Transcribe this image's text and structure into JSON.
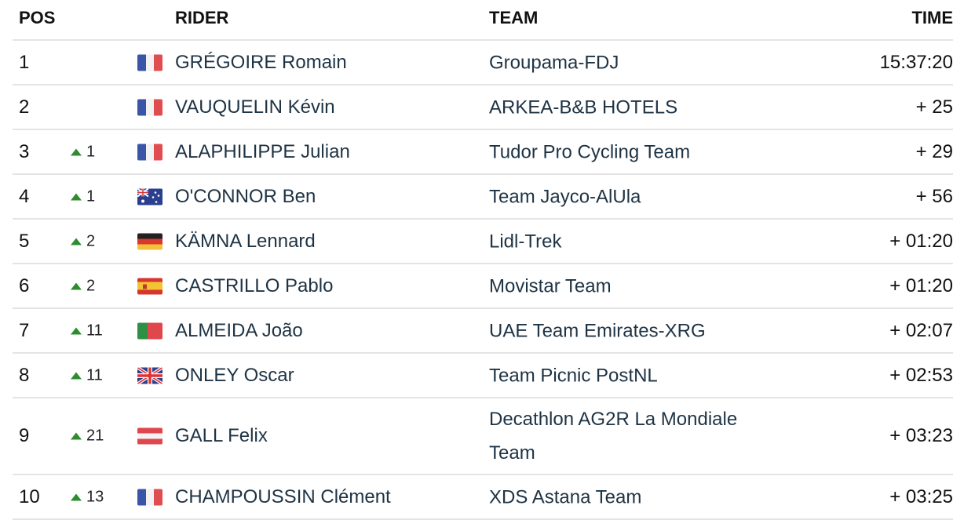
{
  "headers": {
    "pos": "POS",
    "rider": "RIDER",
    "team": "TEAM",
    "time": "TIME"
  },
  "colors": {
    "gain_arrow": "#2e8b2e",
    "divider": "#e4e4e4",
    "text": "#1e3344"
  },
  "rows": [
    {
      "pos": "1",
      "gain": "",
      "flag": "fr",
      "rider": "GRÉGOIRE Romain",
      "team": "Groupama-FDJ",
      "time": "15:37:20"
    },
    {
      "pos": "2",
      "gain": "",
      "flag": "fr",
      "rider": "VAUQUELIN Kévin",
      "team": "ARKEA-B&B HOTELS",
      "time": "+ 25"
    },
    {
      "pos": "3",
      "gain": "1",
      "flag": "fr",
      "rider": "ALAPHILIPPE Julian",
      "team": "Tudor Pro Cycling Team",
      "time": "+ 29"
    },
    {
      "pos": "4",
      "gain": "1",
      "flag": "au",
      "rider": "O'CONNOR Ben",
      "team": "Team Jayco-AlUla",
      "time": "+ 56"
    },
    {
      "pos": "5",
      "gain": "2",
      "flag": "de",
      "rider": "KÄMNA Lennard",
      "team": "Lidl-Trek",
      "time": "+ 01:20"
    },
    {
      "pos": "6",
      "gain": "2",
      "flag": "es",
      "rider": "CASTRILLO Pablo",
      "team": "Movistar Team",
      "time": "+ 01:20"
    },
    {
      "pos": "7",
      "gain": "11",
      "flag": "pt",
      "rider": "ALMEIDA João",
      "team": "UAE Team Emirates-XRG",
      "time": "+ 02:07"
    },
    {
      "pos": "8",
      "gain": "11",
      "flag": "gb",
      "rider": "ONLEY Oscar",
      "team": "Team Picnic PostNL",
      "time": "+ 02:53"
    },
    {
      "pos": "9",
      "gain": "21",
      "flag": "at",
      "rider": "GALL Felix",
      "team": "Decathlon AG2R La Mondiale Team",
      "time": "+ 03:23"
    },
    {
      "pos": "10",
      "gain": "13",
      "flag": "fr",
      "rider": "CHAMPOUSSIN Clément",
      "team": "XDS Astana Team",
      "time": "+ 03:25"
    }
  ]
}
